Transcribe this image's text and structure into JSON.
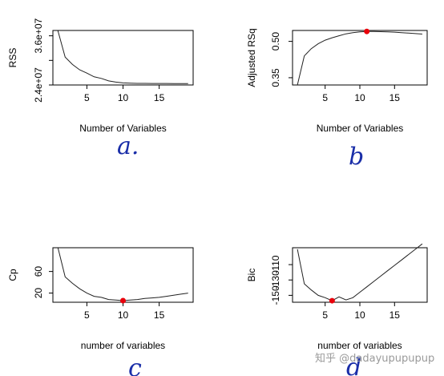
{
  "watermark": "知乎 @dadayupupupup",
  "chart_data": [
    {
      "id": "rss",
      "type": "line",
      "xlabel": "Number of Variables",
      "ylabel": "RSS",
      "handwritten_label": "a.",
      "x": [
        1,
        2,
        3,
        4,
        5,
        6,
        7,
        8,
        9,
        10,
        11,
        12,
        13,
        14,
        15,
        16,
        17,
        18,
        19
      ],
      "y": [
        37200000,
        30800000,
        29000000,
        27700000,
        26900000,
        26000000,
        25600000,
        25000000,
        24700000,
        24500000,
        24450000,
        24400000,
        24390000,
        24380000,
        24370000,
        24365000,
        24360000,
        24360000,
        24360000
      ],
      "xlim": [
        0.3,
        19.7
      ],
      "ylim": [
        24000000,
        37300000
      ],
      "xticks": [
        5,
        10,
        15
      ],
      "xtick_labels": [
        "5",
        "10",
        "15"
      ],
      "yticks": [
        24000000,
        30000000,
        36000000
      ],
      "ytick_labels": [
        "2.4e+07",
        "",
        "3.6e+07"
      ],
      "highlight": null
    },
    {
      "id": "adjr2",
      "type": "line",
      "xlabel": "Number of Variables",
      "ylabel": "Adjusted RSq",
      "handwritten_label": "b",
      "x": [
        1,
        2,
        3,
        4,
        5,
        6,
        7,
        8,
        9,
        10,
        11,
        12,
        13,
        14,
        15,
        16,
        17,
        18,
        19
      ],
      "y": [
        0.32,
        0.44,
        0.47,
        0.49,
        0.505,
        0.515,
        0.523,
        0.531,
        0.536,
        0.539,
        0.541,
        0.541,
        0.54,
        0.539,
        0.538,
        0.536,
        0.534,
        0.532,
        0.53
      ],
      "xlim": [
        0.3,
        19.7
      ],
      "ylim": [
        0.32,
        0.545
      ],
      "xticks": [
        5,
        10,
        15
      ],
      "xtick_labels": [
        "5",
        "10",
        "15"
      ],
      "yticks": [
        0.35,
        0.5
      ],
      "ytick_labels": [
        "0.35",
        "0.50"
      ],
      "highlight": {
        "x": 11,
        "y": 0.541,
        "color": "#e8000b"
      }
    },
    {
      "id": "cp",
      "type": "line",
      "xlabel": "number of variables",
      "ylabel": "Cp",
      "handwritten_label": "c",
      "x": [
        1,
        2,
        3,
        4,
        5,
        6,
        7,
        8,
        9,
        10,
        11,
        12,
        13,
        14,
        15,
        16,
        17,
        18,
        19
      ],
      "y": [
        104,
        50,
        38,
        28,
        20,
        14,
        12,
        8,
        7,
        6,
        7,
        8,
        10,
        11,
        12,
        14,
        16,
        18,
        20
      ],
      "xlim": [
        0.3,
        19.7
      ],
      "ylim": [
        3,
        104
      ],
      "xticks": [
        5,
        10,
        15
      ],
      "xtick_labels": [
        "5",
        "10",
        "15"
      ],
      "yticks": [
        20,
        60
      ],
      "ytick_labels": [
        "20",
        "60"
      ],
      "highlight": {
        "x": 10,
        "y": 6,
        "color": "#e8000b"
      }
    },
    {
      "id": "bic",
      "type": "line",
      "xlabel": "number of variables",
      "ylabel": "Bic",
      "handwritten_label": "d",
      "x": [
        1,
        2,
        3,
        4,
        5,
        6,
        7,
        8,
        9,
        10,
        11,
        12,
        13,
        14,
        15,
        16,
        17,
        18,
        19
      ],
      "y": [
        -90,
        -135,
        -143,
        -150,
        -153,
        -157,
        -152,
        -156,
        -153,
        -146,
        -139,
        -132,
        -125,
        -118,
        -111,
        -104,
        -97,
        -90,
        -83
      ],
      "xlim": [
        0.3,
        19.7
      ],
      "ylim": [
        -159,
        -88
      ],
      "xticks": [
        5,
        10,
        15
      ],
      "xtick_labels": [
        "5",
        "10",
        "15"
      ],
      "yticks": [
        -150,
        -130,
        -110
      ],
      "ytick_labels": [
        "-150",
        "-130",
        "-110"
      ],
      "highlight": {
        "x": 6,
        "y": -157,
        "color": "#e8000b"
      }
    }
  ]
}
